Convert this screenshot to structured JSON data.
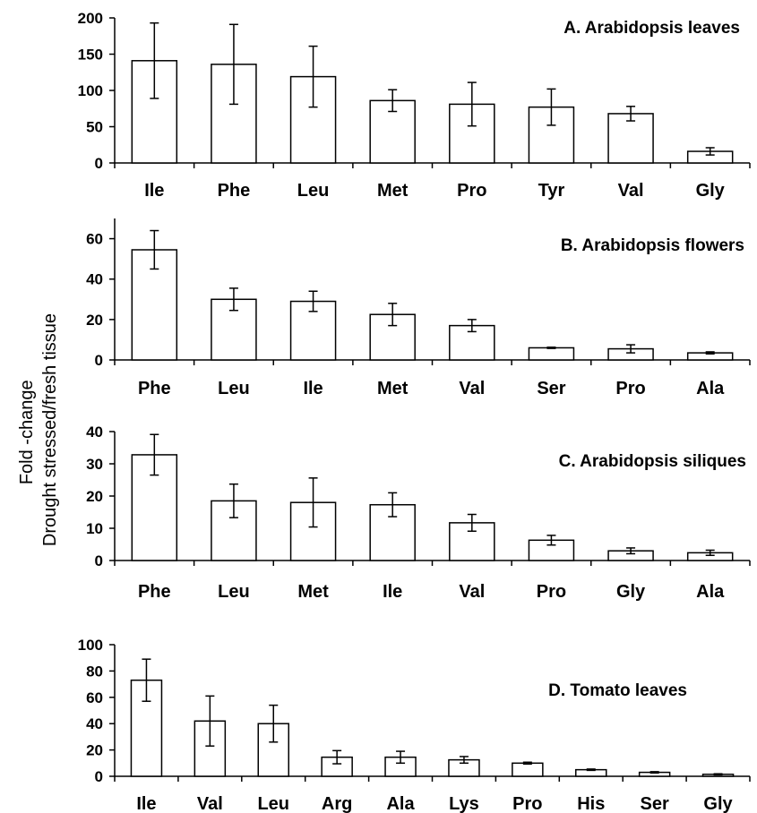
{
  "ylabel_lines": [
    "Fold -change",
    "Drought stressed/fresh tissue"
  ],
  "chart_data": [
    {
      "type": "bar",
      "title": "A. Arabidopsis leaves",
      "categories": [
        "Ile",
        "Phe",
        "Leu",
        "Met",
        "Pro",
        "Tyr",
        "Val",
        "Gly"
      ],
      "values": [
        141,
        136,
        119,
        86,
        81,
        77,
        68,
        16
      ],
      "errors": [
        52,
        55,
        42,
        15,
        30,
        25,
        10,
        5
      ],
      "ylim": [
        0,
        200
      ],
      "yticks": [
        0,
        50,
        100,
        150,
        200
      ]
    },
    {
      "type": "bar",
      "title": "B. Arabidopsis flowers",
      "categories": [
        "Phe",
        "Leu",
        "Ile",
        "Met",
        "Val",
        "Ser",
        "Pro",
        "Ala"
      ],
      "values": [
        54.5,
        30,
        29,
        22.5,
        17,
        6,
        5.5,
        3.5
      ],
      "errors": [
        9.5,
        5.5,
        5,
        5.5,
        3,
        0.3,
        2,
        0.5
      ],
      "ylim": [
        0,
        70
      ],
      "yticks": [
        0,
        20,
        40,
        60
      ]
    },
    {
      "type": "bar",
      "title": "C. Arabidopsis siliques",
      "categories": [
        "Phe",
        "Leu",
        "Met",
        "Ile",
        "Val",
        "Pro",
        "Gly",
        "Ala"
      ],
      "values": [
        32.8,
        18.5,
        18,
        17.3,
        11.7,
        6.3,
        3,
        2.4
      ],
      "errors": [
        6.3,
        5.2,
        7.6,
        3.7,
        2.6,
        1.5,
        0.9,
        0.8
      ],
      "ylim": [
        0,
        40
      ],
      "yticks": [
        0,
        10,
        20,
        30,
        40
      ]
    },
    {
      "type": "bar",
      "title": "D. Tomato leaves",
      "categories": [
        "Ile",
        "Val",
        "Leu",
        "Arg",
        "Ala",
        "Lys",
        "Pro",
        "His",
        "Ser",
        "Gly"
      ],
      "values": [
        73,
        42,
        40,
        14.5,
        14.5,
        12.5,
        10,
        5,
        3,
        1.5
      ],
      "errors": [
        16,
        19,
        14,
        5,
        4.5,
        2.5,
        0.7,
        0.5,
        0.5,
        0.4
      ],
      "ylim": [
        0,
        100
      ],
      "yticks": [
        0,
        20,
        40,
        60,
        80,
        100
      ]
    }
  ]
}
